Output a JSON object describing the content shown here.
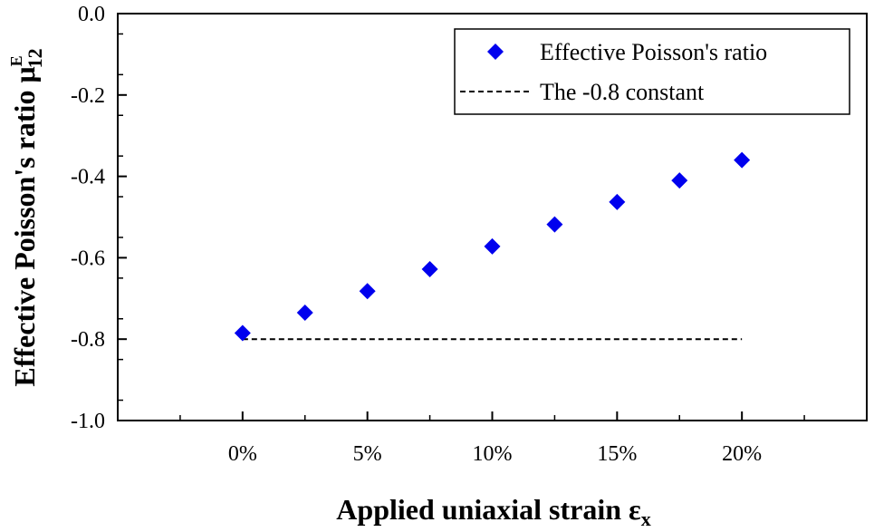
{
  "chart_data": {
    "type": "scatter",
    "x": [
      0,
      2.5,
      5,
      7.5,
      10,
      12.5,
      15,
      17.5,
      20
    ],
    "series": [
      {
        "name": "Effective Poisson's ratio",
        "kind": "scatter",
        "marker": "diamond",
        "color": "#0000ee",
        "values": [
          -0.785,
          -0.735,
          -0.682,
          -0.628,
          -0.572,
          -0.518,
          -0.463,
          -0.41,
          -0.36
        ]
      },
      {
        "name": "The -0.8 constant",
        "kind": "line",
        "style": "dashed",
        "color": "#000000",
        "x": [
          0,
          20
        ],
        "values": [
          -0.8,
          -0.8
        ]
      }
    ],
    "xlabel_main": "Applied uniaxial strain ε",
    "xlabel_sub": "x",
    "ylabel_main": "Effective Poisson's ratio μ",
    "ylabel_sup": "E",
    "ylabel_sub": "12",
    "xlim": [
      -5,
      25
    ],
    "ylim": [
      -1.0,
      0.0
    ],
    "x_ticks": [
      0,
      5,
      10,
      15,
      20
    ],
    "x_tick_labels": [
      "0%",
      "5%",
      "10%",
      "15%",
      "20%"
    ],
    "y_ticks": [
      0.0,
      -0.2,
      -0.4,
      -0.6,
      -0.8,
      -1.0
    ],
    "y_tick_labels": [
      "0.0",
      "-0.2",
      "-0.4",
      "-0.6",
      "-0.8",
      "-1.0"
    ],
    "legend_position": "top-right",
    "grid": false
  }
}
